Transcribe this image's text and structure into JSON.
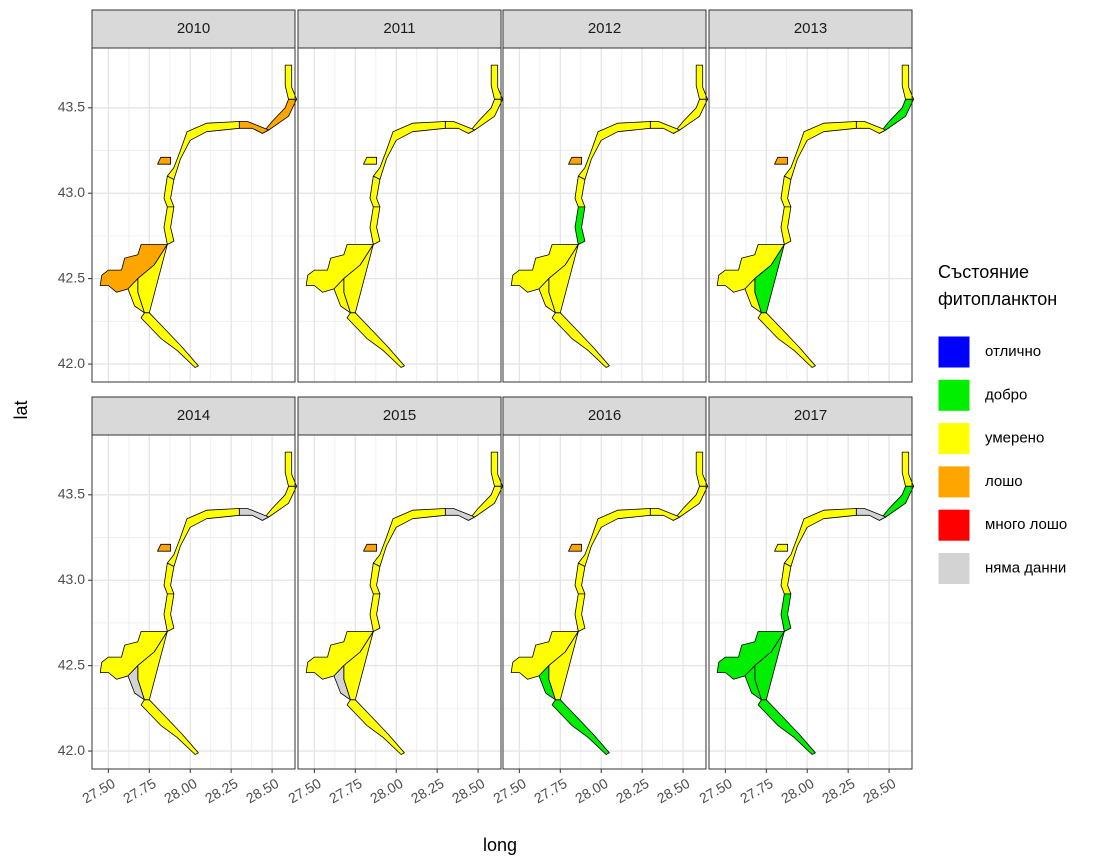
{
  "chart_data": {
    "type": "map",
    "xlabel": "long",
    "ylabel": "lat",
    "xlim": [
      27.4,
      28.64
    ],
    "ylim": [
      41.895,
      43.85
    ],
    "xticks": [
      {
        "value": 27.5,
        "label": "27.50"
      },
      {
        "value": 27.75,
        "label": "27.75"
      },
      {
        "value": 28.0,
        "label": "28.00"
      },
      {
        "value": 28.25,
        "label": "28.25"
      },
      {
        "value": 28.5,
        "label": "28.50"
      }
    ],
    "yticks": [
      {
        "value": 42.0,
        "label": "42.0"
      },
      {
        "value": 42.5,
        "label": "42.5"
      },
      {
        "value": 43.0,
        "label": "43.0"
      },
      {
        "value": 43.5,
        "label": "43.5"
      }
    ],
    "grid": true,
    "legend": {
      "title": [
        "Състояние",
        "фитопланктон"
      ],
      "entries": [
        {
          "name": "отлично",
          "color": "#0000ff"
        },
        {
          "name": "добро",
          "color": "#00ee00"
        },
        {
          "name": "умерено",
          "color": "#ffff00"
        },
        {
          "name": "лошо",
          "color": "#ffa500"
        },
        {
          "name": "много лошо",
          "color": "#ff0000"
        },
        {
          "name": "няма данни",
          "color": "#d3d3d3"
        }
      ]
    },
    "facets": [
      {
        "title": "2010",
        "status": [
          "умерено",
          "лошо",
          "лошо",
          "умерено",
          "лошо",
          "умерено",
          "умерено",
          "лошо",
          "умерено",
          "умерено",
          "умерено"
        ]
      },
      {
        "title": "2011",
        "status": [
          "умерено",
          "умерено",
          "умерено",
          "умерено",
          "умерено",
          "умерено",
          "умерено",
          "умерено",
          "умерено",
          "умерено",
          "умерено"
        ]
      },
      {
        "title": "2012",
        "status": [
          "умерено",
          "умерено",
          "умерено",
          "умерено",
          "лошо",
          "умерено",
          "добро",
          "умерено",
          "умерено",
          "умерено",
          "умерено"
        ]
      },
      {
        "title": "2013",
        "status": [
          "умерено",
          "добро",
          "умерено",
          "умерено",
          "лошо",
          "умерено",
          "умерено",
          "умерено",
          "добро",
          "умерено",
          "умерено"
        ]
      },
      {
        "title": "2014",
        "status": [
          "умерено",
          "умерено",
          "няма данни",
          "умерено",
          "лошо",
          "умерено",
          "умерено",
          "умерено",
          "умерено",
          "няма данни",
          "умерено"
        ]
      },
      {
        "title": "2015",
        "status": [
          "умерено",
          "умерено",
          "няма данни",
          "умерено",
          "лошо",
          "умерено",
          "умерено",
          "умерено",
          "умерено",
          "няма данни",
          "умерено"
        ]
      },
      {
        "title": "2016",
        "status": [
          "умерено",
          "умерено",
          "умерено",
          "умерено",
          "лошо",
          "умерено",
          "умерено",
          "умерено",
          "умерено",
          "добро",
          "добро"
        ]
      },
      {
        "title": "2017",
        "status": [
          "умерено",
          "добро",
          "няма данни",
          "умерено",
          "умерено",
          "умерено",
          "добро",
          "добро",
          "добро",
          "добро",
          "добро"
        ]
      }
    ]
  }
}
